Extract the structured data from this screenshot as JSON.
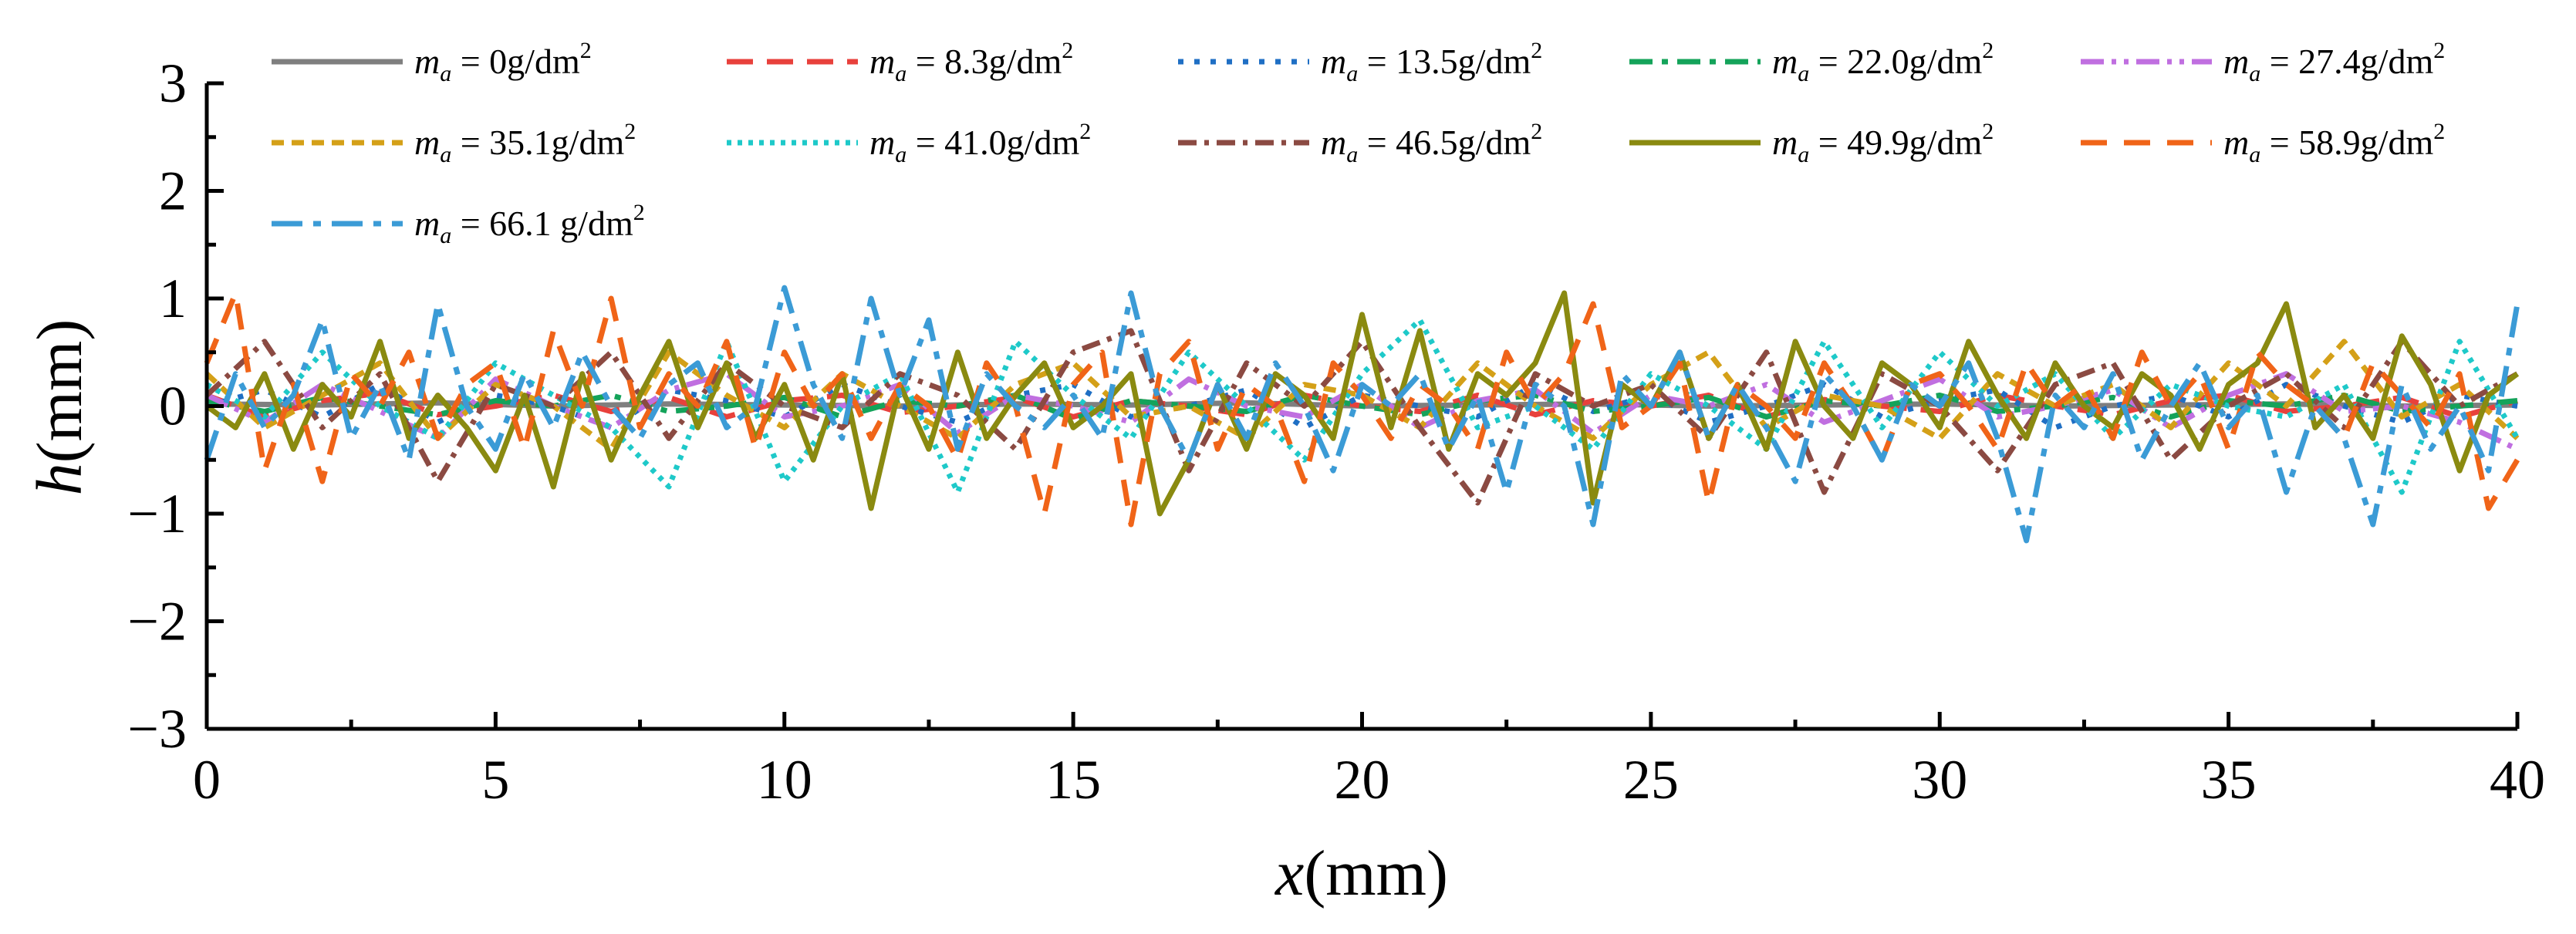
{
  "chart_data": {
    "type": "line",
    "title": "",
    "xlabel_var": "x",
    "xlabel_unit": "(mm)",
    "ylabel_var": "h",
    "ylabel_unit": "(mm)",
    "xlim": [
      0,
      40
    ],
    "ylim": [
      -3,
      3
    ],
    "xticks": [
      0,
      5,
      10,
      15,
      20,
      25,
      30,
      35,
      40
    ],
    "xtick_labels": [
      "0",
      "5",
      "10",
      "15",
      "20",
      "25",
      "30",
      "35",
      "40"
    ],
    "yticks": [
      -3,
      -2,
      -1,
      0,
      1,
      2,
      3
    ],
    "ytick_labels": [
      "−3",
      "−2",
      "−1",
      "0",
      "1",
      "2",
      "3"
    ],
    "legend_position": "top",
    "legend_var": "m",
    "legend_sub": "a",
    "legend_sup": "2",
    "series": [
      {
        "name": "m_a = 0g/dm2",
        "legend_value": " = 0g/dm",
        "color": "#7f7f7f",
        "dash": "",
        "x": [
          0,
          2,
          4,
          6,
          8,
          10,
          12,
          14,
          16,
          18,
          20,
          22,
          24,
          26,
          28,
          30,
          32,
          34,
          36,
          38,
          40
        ],
        "y": [
          0.02,
          0.01,
          0.03,
          0.0,
          0.02,
          0.01,
          0.0,
          0.02,
          0.01,
          0.03,
          0.0,
          0.01,
          0.02,
          0.0,
          0.01,
          0.02,
          0.0,
          0.01,
          0.02,
          0.0,
          0.01
        ]
      },
      {
        "name": "m_a = 8.3g/dm2",
        "legend_value": " = 8.3g/dm",
        "color": "#e8413c",
        "dash": "34,18",
        "x": [
          0,
          1,
          2,
          3,
          4,
          5,
          6,
          7,
          8,
          9,
          10,
          11,
          12,
          13,
          14,
          15,
          16,
          17,
          18,
          19,
          20,
          21,
          22,
          23,
          24,
          25,
          26,
          27,
          28,
          29,
          30,
          31,
          32,
          33,
          34,
          35,
          36,
          37,
          38,
          39,
          40
        ],
        "y": [
          0.1,
          -0.1,
          0.05,
          0.12,
          -0.08,
          0.0,
          0.1,
          -0.05,
          0.08,
          -0.1,
          0.05,
          0.1,
          -0.06,
          0.0,
          0.08,
          -0.1,
          0.05,
          0.0,
          -0.08,
          0.1,
          0.0,
          -0.05,
          0.1,
          -0.08,
          0.05,
          0.0,
          0.1,
          -0.1,
          0.06,
          0.0,
          -0.05,
          0.1,
          0.0,
          -0.08,
          0.05,
          0.1,
          -0.05,
          0.0,
          0.08,
          -0.1,
          0.05
        ]
      },
      {
        "name": "m_a = 13.5g/dm2",
        "legend_value": " = 13.5g/dm",
        "color": "#1f6fc4",
        "dash": "7,14",
        "x": [
          0,
          1,
          2,
          3,
          4,
          5,
          6,
          7,
          8,
          9,
          10,
          11,
          12,
          13,
          14,
          15,
          16,
          17,
          18,
          19,
          20,
          21,
          22,
          23,
          24,
          25,
          26,
          27,
          28,
          29,
          30,
          31,
          32,
          33,
          34,
          35,
          36,
          37,
          38,
          39,
          40
        ],
        "y": [
          0.0,
          0.15,
          -0.1,
          0.2,
          -0.15,
          0.1,
          0.0,
          -0.2,
          0.15,
          0.05,
          -0.1,
          0.2,
          0.0,
          -0.15,
          0.1,
          0.2,
          -0.1,
          0.0,
          0.15,
          -0.2,
          0.1,
          0.0,
          -0.1,
          0.2,
          -0.05,
          0.1,
          -0.15,
          0.0,
          0.2,
          -0.1,
          0.05,
          0.15,
          -0.2,
          0.0,
          0.1,
          -0.1,
          0.2,
          0.0,
          -0.15,
          0.1,
          0.0
        ]
      },
      {
        "name": "m_a = 22.0g/dm2",
        "legend_value": " = 22.0g/dm",
        "color": "#14a35a",
        "dash": "30,12,8,12",
        "x": [
          0,
          1,
          2,
          3,
          4,
          5,
          6,
          7,
          8,
          9,
          10,
          11,
          12,
          13,
          14,
          15,
          16,
          17,
          18,
          19,
          20,
          21,
          22,
          23,
          24,
          25,
          26,
          27,
          28,
          29,
          30,
          31,
          32,
          33,
          34,
          35,
          36,
          37,
          38,
          39,
          40
        ],
        "y": [
          0.05,
          -0.05,
          0.08,
          0.0,
          -0.08,
          0.05,
          0.0,
          0.1,
          -0.05,
          0.0,
          0.08,
          -0.1,
          0.05,
          0.0,
          0.1,
          -0.12,
          0.05,
          0.0,
          -0.05,
          0.1,
          0.0,
          -0.08,
          0.05,
          0.1,
          -0.05,
          0.0,
          0.08,
          -0.1,
          0.05,
          0.0,
          0.1,
          -0.05,
          0.0,
          0.08,
          -0.1,
          0.05,
          0.0,
          0.1,
          -0.05,
          0.0,
          0.05
        ]
      },
      {
        "name": "m_a = 27.4g/dm2",
        "legend_value": " = 27.4g/dm",
        "color": "#c06fe0",
        "dash": "30,10,6,10,6,10",
        "x": [
          0,
          1,
          2,
          3,
          4,
          5,
          6,
          7,
          8,
          9,
          10,
          11,
          12,
          13,
          14,
          15,
          16,
          17,
          18,
          19,
          20,
          21,
          22,
          23,
          24,
          25,
          26,
          27,
          28,
          29,
          30,
          31,
          32,
          33,
          34,
          35,
          36,
          37,
          38,
          39,
          40
        ],
        "y": [
          0.1,
          -0.15,
          0.2,
          -0.05,
          -0.3,
          0.25,
          0.0,
          -0.2,
          0.15,
          0.3,
          -0.1,
          0.0,
          0.2,
          -0.25,
          0.1,
          0.0,
          -0.15,
          0.25,
          0.0,
          -0.1,
          0.2,
          -0.2,
          0.05,
          0.15,
          -0.25,
          0.1,
          0.0,
          0.2,
          -0.15,
          0.05,
          0.25,
          -0.1,
          0.0,
          0.15,
          -0.2,
          0.1,
          0.3,
          -0.05,
          0.0,
          -0.15,
          -0.4
        ]
      },
      {
        "name": "m_a = 35.1g/dm2",
        "legend_value": " = 35.1g/dm",
        "color": "#d4a018",
        "dash": "16,10",
        "x": [
          0,
          1,
          2,
          3,
          4,
          5,
          6,
          7,
          8,
          9,
          10,
          11,
          12,
          13,
          14,
          15,
          16,
          17,
          18,
          19,
          20,
          21,
          22,
          23,
          24,
          25,
          26,
          27,
          28,
          29,
          30,
          31,
          32,
          33,
          34,
          35,
          36,
          37,
          38,
          39,
          40
        ],
        "y": [
          0.3,
          -0.2,
          0.1,
          0.4,
          -0.3,
          0.2,
          0.0,
          -0.4,
          0.5,
          0.1,
          -0.2,
          0.3,
          0.0,
          -0.3,
          0.2,
          0.4,
          -0.1,
          0.0,
          -0.3,
          0.2,
          0.1,
          -0.2,
          0.4,
          0.0,
          -0.3,
          0.2,
          0.5,
          -0.2,
          0.1,
          0.0,
          -0.3,
          0.3,
          0.0,
          0.2,
          -0.2,
          0.4,
          0.0,
          0.6,
          -0.1,
          0.2,
          -0.3
        ]
      },
      {
        "name": "m_a = 41.0g/dm2",
        "legend_value": " = 41.0g/dm",
        "color": "#1ec9c9",
        "dash": "6,8",
        "x": [
          0,
          1,
          2,
          3,
          4,
          5,
          6,
          7,
          8,
          9,
          10,
          11,
          12,
          13,
          14,
          15,
          16,
          17,
          18,
          19,
          20,
          21,
          22,
          23,
          24,
          25,
          26,
          27,
          28,
          29,
          30,
          31,
          32,
          33,
          34,
          35,
          36,
          37,
          38,
          39,
          40
        ],
        "y": [
          0.2,
          -0.1,
          0.5,
          0.0,
          -0.3,
          0.4,
          0.1,
          -0.2,
          -0.75,
          0.6,
          -0.7,
          0.0,
          0.3,
          -0.8,
          0.6,
          0.1,
          -0.3,
          0.5,
          0.0,
          -0.5,
          0.3,
          0.8,
          -0.2,
          0.0,
          -0.4,
          0.3,
          0.0,
          -0.4,
          0.6,
          -0.2,
          0.5,
          0.0,
          0.3,
          -0.3,
          0.2,
          0.0,
          -0.1,
          0.2,
          -0.8,
          0.6,
          -0.3
        ]
      },
      {
        "name": "m_a = 46.5g/dm2",
        "legend_value": " = 46.5g/dm",
        "color": "#8b4a42",
        "dash": "24,10,6,10",
        "x": [
          0,
          1,
          2,
          3,
          4,
          5,
          6,
          7,
          8,
          9,
          10,
          11,
          12,
          13,
          14,
          15,
          16,
          17,
          18,
          19,
          20,
          21,
          22,
          23,
          24,
          25,
          26,
          27,
          28,
          29,
          30,
          31,
          32,
          33,
          34,
          35,
          36,
          37,
          38,
          39,
          40
        ],
        "y": [
          0.1,
          0.6,
          -0.2,
          0.3,
          -0.7,
          0.2,
          0.0,
          0.5,
          -0.3,
          0.4,
          0.0,
          -0.2,
          0.3,
          0.1,
          -0.4,
          0.5,
          0.7,
          -0.6,
          0.4,
          0.0,
          0.6,
          -0.2,
          -0.9,
          0.3,
          0.0,
          0.2,
          -0.3,
          0.5,
          -0.8,
          0.3,
          0.0,
          -0.6,
          0.2,
          0.4,
          -0.5,
          0.0,
          0.3,
          -0.2,
          0.6,
          0.0,
          0.3
        ]
      },
      {
        "name": "m_a = 49.9g/dm2",
        "legend_value": " = 49.9g/dm",
        "color": "#8a8a10",
        "dash": "",
        "x": [
          0,
          0.5,
          1,
          1.5,
          2,
          2.5,
          3,
          3.5,
          4,
          4.5,
          5,
          5.5,
          6,
          6.5,
          7,
          7.5,
          8,
          8.5,
          9,
          9.5,
          10,
          10.5,
          11,
          11.5,
          12,
          12.5,
          13,
          13.5,
          14,
          14.5,
          15,
          15.5,
          16,
          16.5,
          17,
          17.5,
          18,
          18.5,
          19,
          19.5,
          20,
          20.5,
          21,
          21.5,
          22,
          22.5,
          23,
          23.5,
          24,
          24.5,
          25,
          25.5,
          26,
          26.5,
          27,
          27.5,
          28,
          28.5,
          29,
          29.5,
          30,
          30.5,
          31,
          31.5,
          32,
          32.5,
          33,
          33.5,
          34,
          34.5,
          35,
          35.5,
          36,
          36.5,
          37,
          37.5,
          38,
          38.5,
          39,
          39.5,
          40
        ],
        "y": [
          0.0,
          -0.2,
          0.3,
          -0.4,
          0.2,
          -0.1,
          0.6,
          -0.3,
          0.1,
          -0.2,
          -0.6,
          0.1,
          -0.75,
          0.3,
          -0.5,
          0.1,
          0.6,
          -0.2,
          0.4,
          -0.3,
          0.2,
          -0.5,
          0.3,
          -0.95,
          0.2,
          -0.4,
          0.5,
          -0.3,
          0.1,
          0.4,
          -0.2,
          0.0,
          0.3,
          -1.0,
          -0.5,
          0.2,
          -0.4,
          0.3,
          0.1,
          -0.3,
          0.85,
          -0.2,
          0.7,
          -0.4,
          0.3,
          0.1,
          0.4,
          1.05,
          -0.9,
          0.2,
          0.0,
          0.5,
          -0.3,
          0.2,
          -0.4,
          0.6,
          0.0,
          -0.3,
          0.4,
          0.2,
          -0.2,
          0.6,
          0.1,
          -0.3,
          0.4,
          0.0,
          -0.2,
          0.3,
          0.1,
          -0.4,
          0.2,
          0.4,
          0.95,
          -0.2,
          0.1,
          -0.3,
          0.65,
          0.2,
          -0.6,
          0.1,
          0.3
        ]
      },
      {
        "name": "m_a = 58.9g/dm2",
        "legend_value": " = 58.9g/dm",
        "color": "#f06418",
        "dash": "34,22",
        "x": [
          0,
          0.5,
          1,
          1.5,
          2,
          2.5,
          3,
          3.5,
          4,
          4.5,
          5,
          5.5,
          6,
          6.5,
          7,
          7.5,
          8,
          8.5,
          9,
          9.5,
          10,
          10.5,
          11,
          11.5,
          12,
          12.5,
          13,
          13.5,
          14,
          14.5,
          15,
          15.5,
          16,
          16.5,
          17,
          17.5,
          18,
          18.5,
          19,
          19.5,
          20,
          20.5,
          21,
          21.5,
          22,
          22.5,
          23,
          23.5,
          24,
          24.5,
          25,
          25.5,
          26,
          26.5,
          27,
          27.5,
          28,
          28.5,
          29,
          29.5,
          30,
          30.5,
          31,
          31.5,
          32,
          32.5,
          33,
          33.5,
          34,
          34.5,
          35,
          35.5,
          36,
          36.5,
          37,
          37.5,
          38,
          38.5,
          39,
          39.5,
          40
        ],
        "y": [
          0.4,
          1.05,
          -0.6,
          0.2,
          -0.7,
          0.3,
          0.0,
          0.5,
          -0.3,
          0.2,
          0.4,
          -0.4,
          0.7,
          0.0,
          1.0,
          -0.2,
          0.3,
          0.0,
          0.6,
          -0.4,
          0.5,
          0.0,
          0.3,
          -0.3,
          0.2,
          0.0,
          -0.5,
          0.4,
          0.0,
          -1.0,
          0.2,
          0.5,
          -1.1,
          0.3,
          0.6,
          -0.4,
          0.2,
          0.0,
          -0.7,
          0.4,
          0.1,
          -0.3,
          0.2,
          0.0,
          -0.4,
          0.5,
          0.0,
          0.3,
          0.95,
          -0.2,
          0.0,
          0.4,
          -0.9,
          0.2,
          0.0,
          -0.3,
          0.4,
          0.0,
          -0.5,
          0.2,
          0.3,
          0.0,
          -0.4,
          0.4,
          0.0,
          0.2,
          -0.3,
          0.5,
          0.0,
          0.3,
          -0.4,
          0.5,
          0.2,
          0.0,
          -0.3,
          0.4,
          0.1,
          -0.2,
          0.3,
          -0.95,
          -0.5
        ]
      },
      {
        "name": "m_a = 66.1 g/dm2",
        "legend_value": " = 66.1 g/dm",
        "color": "#3b9bd6",
        "dash": "40,14,10,14",
        "x": [
          0,
          0.5,
          1,
          1.5,
          2,
          2.5,
          3,
          3.5,
          4,
          4.5,
          5,
          5.5,
          6,
          6.5,
          7,
          7.5,
          8,
          8.5,
          9,
          9.5,
          10,
          10.5,
          11,
          11.5,
          12,
          12.5,
          13,
          13.5,
          14,
          14.5,
          15,
          15.5,
          16,
          16.5,
          17,
          17.5,
          18,
          18.5,
          19,
          19.5,
          20,
          20.5,
          21,
          21.5,
          22,
          22.5,
          23,
          23.5,
          24,
          24.5,
          25,
          25.5,
          26,
          26.5,
          27,
          27.5,
          28,
          28.5,
          29,
          29.5,
          30,
          30.5,
          31,
          31.5,
          32,
          32.5,
          33,
          33.5,
          34,
          34.5,
          35,
          35.5,
          36,
          36.5,
          37,
          37.5,
          38,
          38.5,
          39,
          39.5,
          40
        ],
        "y": [
          -0.5,
          0.3,
          -0.2,
          0.1,
          0.8,
          -0.3,
          0.2,
          -0.5,
          0.95,
          0.0,
          -0.4,
          0.3,
          -0.2,
          0.5,
          0.0,
          -0.3,
          0.2,
          0.4,
          -0.2,
          0.0,
          1.1,
          0.2,
          -0.3,
          1.0,
          0.1,
          0.8,
          -0.4,
          0.3,
          0.0,
          -0.2,
          0.1,
          -0.3,
          1.05,
          0.0,
          -0.5,
          0.2,
          -0.3,
          0.4,
          0.0,
          -0.6,
          0.2,
          0.0,
          0.3,
          -0.4,
          0.1,
          -0.8,
          0.2,
          0.0,
          -1.1,
          0.3,
          0.0,
          0.5,
          -0.3,
          0.2,
          -0.2,
          -0.7,
          0.3,
          0.0,
          -0.5,
          0.2,
          0.0,
          0.4,
          -0.3,
          -1.25,
          0.1,
          -0.2,
          0.3,
          -0.5,
          0.0,
          0.4,
          -0.2,
          0.1,
          -0.8,
          0.0,
          -0.3,
          -1.1,
          0.2,
          -0.4,
          0.0,
          -0.6,
          0.95
        ]
      }
    ]
  }
}
